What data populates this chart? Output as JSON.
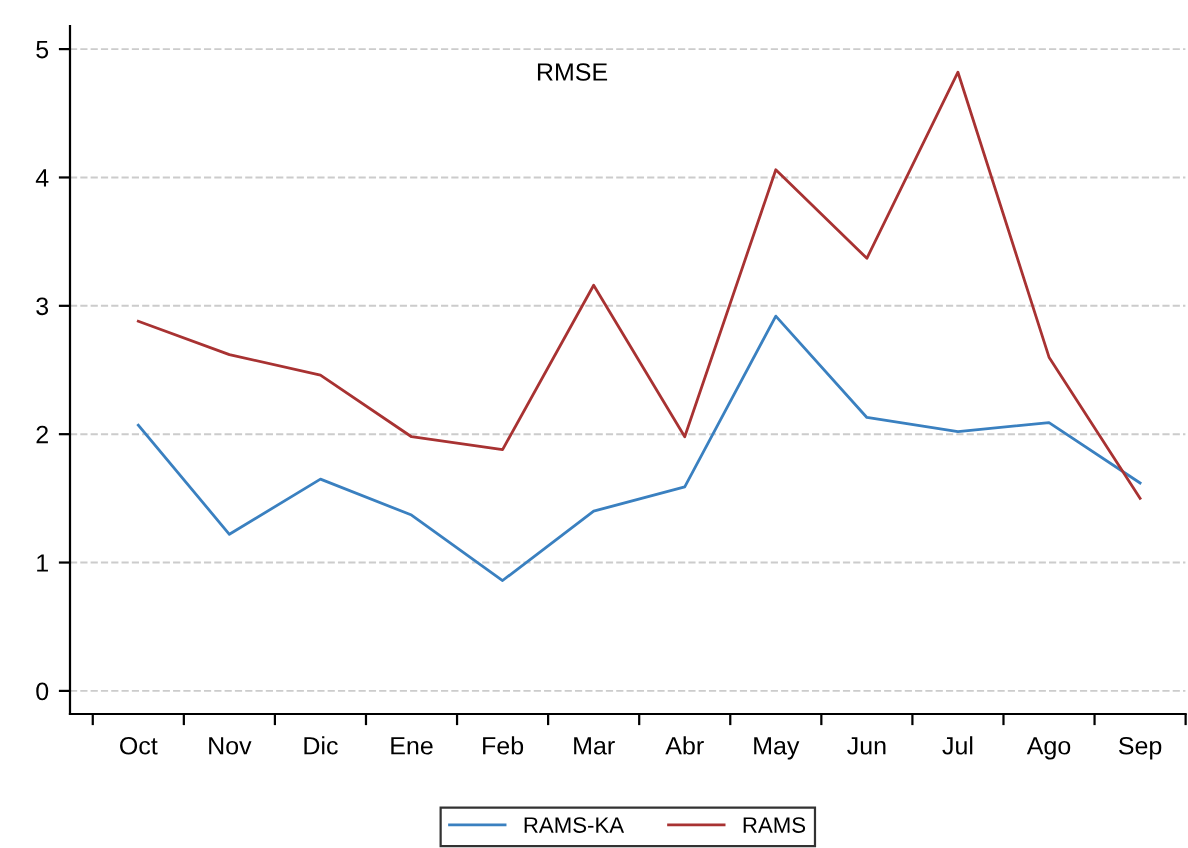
{
  "chart_data": {
    "type": "line",
    "title": "RMSE",
    "categories": [
      "Oct",
      "Nov",
      "Dic",
      "Ene",
      "Feb",
      "Mar",
      "Abr",
      "May",
      "Jun",
      "Jul",
      "Ago",
      "Sep"
    ],
    "series": [
      {
        "name": "RAMS-KA",
        "color": "#3a80c0",
        "values": [
          2.07,
          1.22,
          1.65,
          1.37,
          0.86,
          1.4,
          1.59,
          2.92,
          2.13,
          2.02,
          2.09,
          1.62
        ]
      },
      {
        "name": "RAMS",
        "color": "#a83232",
        "values": [
          2.88,
          2.62,
          2.46,
          1.98,
          1.88,
          3.16,
          1.98,
          4.06,
          3.37,
          4.82,
          2.6,
          1.5
        ]
      }
    ],
    "ylim": [
      -0.18,
      5.18
    ],
    "yticks": [
      0,
      1,
      2,
      3,
      4,
      5
    ],
    "grid": "y",
    "legend": "bottom",
    "marker": "none",
    "line_style": "solid"
  }
}
